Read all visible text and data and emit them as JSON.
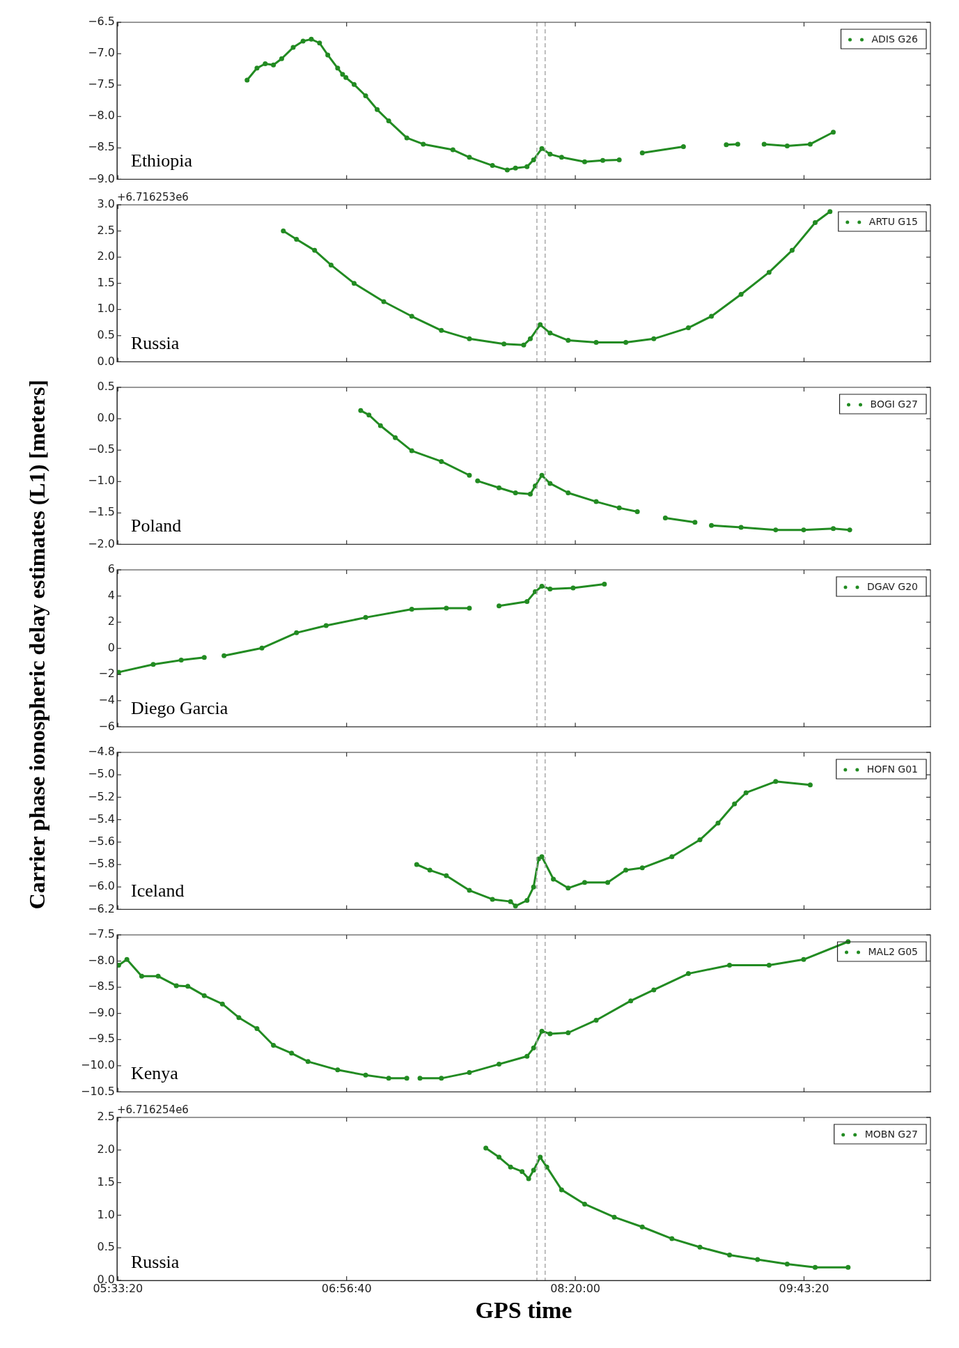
{
  "chart_data": [
    {
      "type": "line",
      "annotations": [
        "Ethiopia"
      ],
      "legend": "top right",
      "marker": "circle",
      "tick_labels": "y",
      "x": [
        6.34,
        6.4,
        6.45,
        6.5,
        6.55,
        6.62,
        6.68,
        6.73,
        6.78,
        6.83,
        6.89,
        6.92,
        6.93,
        6.94,
        6.99,
        7.06,
        7.13,
        7.2,
        7.31,
        7.41,
        7.59,
        7.69,
        7.83,
        7.92,
        7.97,
        8.04,
        8.08,
        8.13,
        8.18,
        8.25,
        8.39,
        8.5,
        8.6,
        8.67,
        8.74,
        8.99,
        9.12,
        9.25,
        9.32,
        9.4,
        9.48,
        9.62,
        9.76,
        9.9
      ],
      "series": [
        {
          "name": "ADIS G26",
          "color": "#228b22",
          "values": [
            -7.42,
            -7.23,
            -7.16,
            -7.18,
            -7.08,
            -6.9,
            -6.8,
            -6.77,
            -6.83,
            -7.02,
            -7.23,
            -7.33,
            null,
            -7.38,
            -7.49,
            -7.67,
            -7.89,
            -8.07,
            -8.34,
            -8.44,
            -8.53,
            -8.65,
            -8.78,
            -8.85,
            -8.82,
            -8.8,
            -8.69,
            -8.51,
            -8.6,
            -8.65,
            -8.72,
            -8.7,
            -8.69,
            null,
            -8.58,
            -8.48,
            null,
            -8.45,
            -8.44,
            null,
            -8.44,
            -8.47,
            -8.44,
            -8.25
          ]
        }
      ],
      "xlim": [
        5.55,
        10.49
      ],
      "xticks": [
        {
          "value": 5.5556,
          "label": null
        },
        {
          "value": 6.9444,
          "label": null
        },
        {
          "value": 8.3333,
          "label": null
        },
        {
          "value": 9.7222,
          "label": null
        }
      ],
      "ylim": [
        -9,
        -6.5
      ],
      "yticks": [
        {
          "value": -9,
          "label": "−9.0"
        },
        {
          "value": -8.5,
          "label": "−8.5"
        },
        {
          "value": -8,
          "label": "−8.0"
        },
        {
          "value": -7.5,
          "label": "−7.5"
        },
        {
          "value": -7,
          "label": "−7.0"
        },
        {
          "value": -6.5,
          "label": "−6.5"
        }
      ],
      "ref_lines": [
        {
          "axis": "x",
          "value": 8.1,
          "color": "#aaaaaa",
          "line_style": "dashed"
        },
        {
          "axis": "x",
          "value": 8.15,
          "color": "#aaaaaa",
          "line_style": "dashed"
        }
      ]
    },
    {
      "type": "line",
      "annotations": [
        "Russia",
        "+6.716253e6"
      ],
      "legend": "top right",
      "marker": "circle",
      "tick_labels": "y",
      "x": [
        6.56,
        6.64,
        6.75,
        6.85,
        6.99,
        7.17,
        7.34,
        7.52,
        7.69,
        7.9,
        8.02,
        8.06,
        8.12,
        8.18,
        8.29,
        8.46,
        8.64,
        8.81,
        9.02,
        9.16,
        9.34,
        9.51,
        9.65,
        9.79,
        9.88
      ],
      "series": [
        {
          "name": "ARTU G15",
          "color": "#228b22",
          "values": [
            2.5,
            2.34,
            2.13,
            1.85,
            1.5,
            1.15,
            0.87,
            0.6,
            0.44,
            0.34,
            0.32,
            0.44,
            0.71,
            0.55,
            0.41,
            0.37,
            0.37,
            0.44,
            0.65,
            0.87,
            1.29,
            1.71,
            2.13,
            2.66,
            2.87
          ]
        }
      ],
      "xlim": [
        5.55,
        10.49
      ],
      "xticks": [
        {
          "value": 5.5556,
          "label": null
        },
        {
          "value": 6.9444,
          "label": null
        },
        {
          "value": 8.3333,
          "label": null
        },
        {
          "value": 9.7222,
          "label": null
        }
      ],
      "ylim": [
        0,
        3
      ],
      "yticks": [
        {
          "value": 0,
          "label": "0.0"
        },
        {
          "value": 0.5,
          "label": "0.5"
        },
        {
          "value": 1,
          "label": "1.0"
        },
        {
          "value": 1.5,
          "label": "1.5"
        },
        {
          "value": 2,
          "label": "2.0"
        },
        {
          "value": 2.5,
          "label": "2.5"
        },
        {
          "value": 3,
          "label": "3.0"
        }
      ],
      "ref_lines": [
        {
          "axis": "x",
          "value": 8.1,
          "color": "#aaaaaa",
          "line_style": "dashed"
        },
        {
          "axis": "x",
          "value": 8.15,
          "color": "#aaaaaa",
          "line_style": "dashed"
        }
      ]
    },
    {
      "type": "line",
      "annotations": [
        "Poland"
      ],
      "legend": "top right",
      "marker": "circle",
      "tick_labels": "y",
      "x": [
        7.03,
        7.08,
        7.15,
        7.24,
        7.34,
        7.52,
        7.69,
        7.72,
        7.74,
        7.87,
        7.97,
        8.06,
        8.09,
        8.13,
        8.18,
        8.29,
        8.46,
        8.6,
        8.71,
        8.79,
        8.88,
        9.06,
        9.12,
        9.16,
        9.34,
        9.55,
        9.72,
        9.9,
        10.0
      ],
      "series": [
        {
          "name": "BOGI G27",
          "color": "#228b22",
          "values": [
            0.13,
            0.06,
            -0.11,
            -0.3,
            -0.51,
            -0.68,
            -0.9,
            null,
            -0.99,
            -1.1,
            -1.18,
            -1.2,
            -1.07,
            -0.9,
            -1.03,
            -1.18,
            -1.32,
            -1.42,
            -1.48,
            null,
            -1.58,
            -1.65,
            null,
            -1.7,
            -1.73,
            -1.77,
            -1.77,
            -1.75,
            -1.77
          ]
        }
      ],
      "xlim": [
        5.55,
        10.49
      ],
      "xticks": [
        {
          "value": 5.5556,
          "label": null
        },
        {
          "value": 6.9444,
          "label": null
        },
        {
          "value": 8.3333,
          "label": null
        },
        {
          "value": 9.7222,
          "label": null
        }
      ],
      "ylim": [
        -2,
        0.5
      ],
      "yticks": [
        {
          "value": -2,
          "label": "−2.0"
        },
        {
          "value": -1.5,
          "label": "−1.5"
        },
        {
          "value": -1,
          "label": "−1.0"
        },
        {
          "value": -0.5,
          "label": "−0.5"
        },
        {
          "value": 0,
          "label": "0.0"
        },
        {
          "value": 0.5,
          "label": "0.5"
        }
      ],
      "ref_lines": [
        {
          "axis": "x",
          "value": 8.1,
          "color": "#aaaaaa",
          "line_style": "dashed"
        },
        {
          "axis": "x",
          "value": 8.15,
          "color": "#aaaaaa",
          "line_style": "dashed"
        }
      ]
    },
    {
      "type": "line",
      "ylabel": "Carrier phase ionospheric delay estimates (L1) [meters]",
      "annotations": [
        "Diego Garcia"
      ],
      "legend": "top right",
      "marker": "circle",
      "tick_labels": "y",
      "x": [
        5.56,
        5.77,
        5.94,
        6.08,
        6.14,
        6.2,
        6.43,
        6.64,
        6.82,
        7.06,
        7.34,
        7.55,
        7.69,
        7.78,
        7.87,
        8.04,
        8.09,
        8.13,
        8.18,
        8.32,
        8.51
      ],
      "series": [
        {
          "name": "DGAV G20",
          "color": "#228b22",
          "values": [
            -1.82,
            -1.23,
            -0.9,
            -0.69,
            null,
            -0.56,
            0.02,
            1.19,
            1.74,
            2.36,
            2.99,
            3.07,
            3.07,
            null,
            3.24,
            3.58,
            4.33,
            4.75,
            4.54,
            4.62,
            4.91
          ]
        }
      ],
      "xlim": [
        5.55,
        10.49
      ],
      "xticks": [
        {
          "value": 5.5556,
          "label": null
        },
        {
          "value": 6.9444,
          "label": null
        },
        {
          "value": 8.3333,
          "label": null
        },
        {
          "value": 9.7222,
          "label": null
        }
      ],
      "ylim": [
        -6,
        6
      ],
      "yticks": [
        {
          "value": -6,
          "label": "−6"
        },
        {
          "value": -4,
          "label": "−4"
        },
        {
          "value": -2,
          "label": "−2"
        },
        0,
        2,
        4,
        6
      ],
      "ref_lines": [
        {
          "axis": "x",
          "value": 8.1,
          "color": "#aaaaaa",
          "line_style": "dashed"
        },
        {
          "axis": "x",
          "value": 8.15,
          "color": "#aaaaaa",
          "line_style": "dashed"
        }
      ]
    },
    {
      "type": "line",
      "annotations": [
        "Iceland"
      ],
      "legend": "top right",
      "marker": "circle",
      "tick_labels": "y",
      "x": [
        7.37,
        7.45,
        7.55,
        7.69,
        7.83,
        7.94,
        7.97,
        8.04,
        8.08,
        8.11,
        8.13,
        8.2,
        8.29,
        8.39,
        8.53,
        8.64,
        8.74,
        8.92,
        9.09,
        9.2,
        9.3,
        9.37,
        9.55,
        9.76
      ],
      "series": [
        {
          "name": "HOFN G01",
          "color": "#228b22",
          "values": [
            -5.8,
            -5.85,
            -5.9,
            -6.03,
            -6.11,
            -6.13,
            -6.17,
            -6.12,
            -6.0,
            -5.75,
            -5.73,
            -5.93,
            -6.01,
            -5.96,
            -5.96,
            -5.85,
            -5.83,
            -5.73,
            -5.58,
            -5.43,
            -5.26,
            -5.16,
            -5.06,
            -5.09
          ]
        }
      ],
      "xlim": [
        5.55,
        10.49
      ],
      "xticks": [
        {
          "value": 5.5556,
          "label": null
        },
        {
          "value": 6.9444,
          "label": null
        },
        {
          "value": 8.3333,
          "label": null
        },
        {
          "value": 9.7222,
          "label": null
        }
      ],
      "ylim": [
        -6.2,
        -4.8
      ],
      "yticks": [
        {
          "value": -6.2,
          "label": "−6.2"
        },
        {
          "value": -6,
          "label": "−6.0"
        },
        {
          "value": -5.8,
          "label": "−5.8"
        },
        {
          "value": -5.6,
          "label": "−5.6"
        },
        {
          "value": -5.4,
          "label": "−5.4"
        },
        {
          "value": -5.2,
          "label": "−5.2"
        },
        {
          "value": -5,
          "label": "−5.0"
        },
        {
          "value": -4.8,
          "label": "−4.8"
        }
      ],
      "ref_lines": [
        {
          "axis": "x",
          "value": 8.1,
          "color": "#aaaaaa",
          "line_style": "dashed"
        },
        {
          "axis": "x",
          "value": 8.15,
          "color": "#aaaaaa",
          "line_style": "dashed"
        }
      ]
    },
    {
      "type": "line",
      "annotations": [
        "Kenya"
      ],
      "legend": "top right",
      "marker": "circle",
      "tick_labels": "y",
      "x": [
        5.56,
        5.61,
        5.7,
        5.8,
        5.91,
        5.98,
        6.08,
        6.19,
        6.29,
        6.4,
        6.5,
        6.61,
        6.71,
        6.89,
        7.06,
        7.2,
        7.31,
        7.36,
        7.39,
        7.52,
        7.69,
        7.87,
        8.04,
        8.08,
        8.13,
        8.18,
        8.29,
        8.46,
        8.67,
        8.81,
        9.02,
        9.27,
        9.51,
        9.72,
        9.99
      ],
      "series": [
        {
          "name": "MAL2 G05",
          "color": "#228b22",
          "values": [
            -8.08,
            -7.97,
            -8.29,
            -8.29,
            -8.47,
            -8.48,
            -8.66,
            -8.82,
            -9.08,
            -9.29,
            -9.61,
            -9.76,
            -9.92,
            -10.08,
            -10.18,
            -10.24,
            -10.24,
            null,
            -10.24,
            -10.24,
            -10.13,
            -9.97,
            -9.82,
            -9.66,
            -9.34,
            -9.39,
            -9.37,
            -9.13,
            -8.76,
            -8.55,
            -8.24,
            -8.08,
            -8.08,
            -7.97,
            -7.63
          ]
        }
      ],
      "xlim": [
        5.55,
        10.49
      ],
      "xticks": [
        {
          "value": 5.5556,
          "label": null
        },
        {
          "value": 6.9444,
          "label": null
        },
        {
          "value": 8.3333,
          "label": null
        },
        {
          "value": 9.7222,
          "label": null
        }
      ],
      "ylim": [
        -10.5,
        -7.5
      ],
      "yticks": [
        {
          "value": -10.5,
          "label": "−10.5"
        },
        {
          "value": -10,
          "label": "−10.0"
        },
        {
          "value": -9.5,
          "label": "−9.5"
        },
        {
          "value": -9,
          "label": "−9.0"
        },
        {
          "value": -8.5,
          "label": "−8.5"
        },
        {
          "value": -8,
          "label": "−8.0"
        },
        {
          "value": -7.5,
          "label": "−7.5"
        }
      ],
      "ref_lines": [
        {
          "axis": "x",
          "value": 8.1,
          "color": "#aaaaaa",
          "line_style": "dashed"
        },
        {
          "axis": "x",
          "value": 8.15,
          "color": "#aaaaaa",
          "line_style": "dashed"
        }
      ]
    },
    {
      "type": "line",
      "xlabel": "GPS time",
      "annotations": [
        "Russia",
        "+6.716254e6"
      ],
      "legend": "top right",
      "marker": "circle",
      "x": [
        7.79,
        7.87,
        7.94,
        8.01,
        8.05,
        8.08,
        8.12,
        8.16,
        8.25,
        8.39,
        8.57,
        8.74,
        8.92,
        9.09,
        9.27,
        9.44,
        9.62,
        9.79,
        9.99
      ],
      "series": [
        {
          "name": "MOBN G27",
          "color": "#228b22",
          "values": [
            2.03,
            1.89,
            1.74,
            1.67,
            1.56,
            1.69,
            1.89,
            1.74,
            1.39,
            1.17,
            0.97,
            0.82,
            0.64,
            0.51,
            0.39,
            0.32,
            0.25,
            0.2,
            0.2
          ]
        }
      ],
      "xlim": [
        5.55,
        10.49
      ],
      "xticks": [
        {
          "value": 5.5556,
          "label": "05:33:20"
        },
        {
          "value": 6.9444,
          "label": "06:56:40"
        },
        {
          "value": 8.3333,
          "label": "08:20:00"
        },
        {
          "value": 9.7222,
          "label": "09:43:20"
        }
      ],
      "ylim": [
        0,
        2.5
      ],
      "yticks": [
        {
          "value": 0,
          "label": "0.0"
        },
        {
          "value": 0.5,
          "label": "0.5"
        },
        {
          "value": 1,
          "label": "1.0"
        },
        {
          "value": 1.5,
          "label": "1.5"
        },
        {
          "value": 2,
          "label": "2.0"
        },
        {
          "value": 2.5,
          "label": "2.5"
        }
      ],
      "ref_lines": [
        {
          "axis": "x",
          "value": 8.1,
          "color": "#aaaaaa",
          "line_style": "dashed"
        },
        {
          "axis": "x",
          "value": 8.15,
          "color": "#aaaaaa",
          "line_style": "dashed"
        }
      ]
    }
  ]
}
